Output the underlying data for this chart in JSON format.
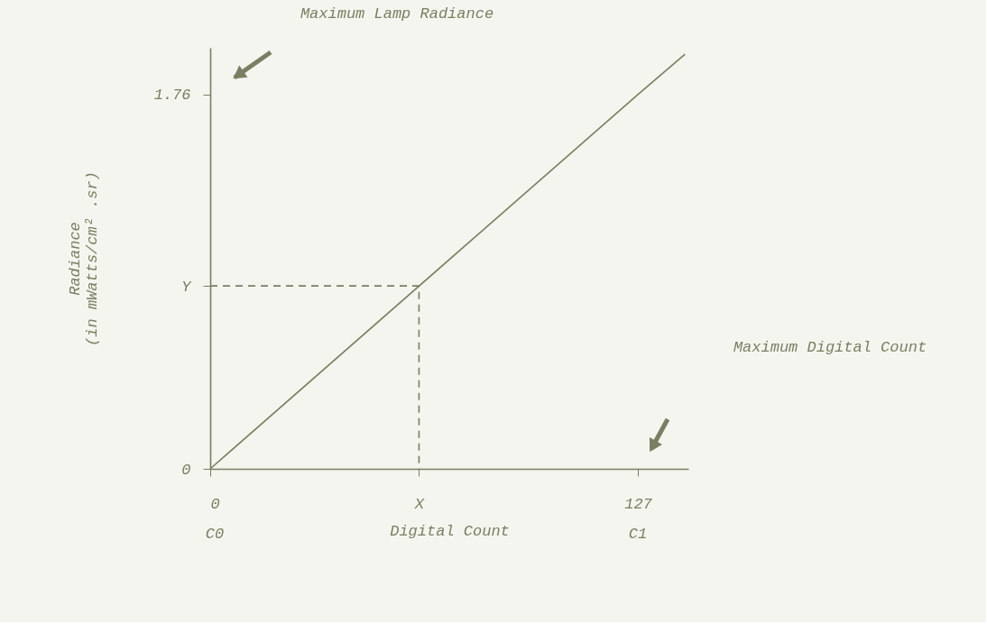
{
  "chart_data": {
    "type": "line",
    "xlabel": "Digital Count",
    "ylabel": "Radiance\n(in mWatts/cm² .sr)",
    "series": [
      {
        "color": "#7b7e63",
        "x": [
          0,
          127,
          141
        ],
        "values": [
          0,
          1.76,
          1.95
        ],
        "line_style": "solid"
      },
      {
        "color": "#7b7e63",
        "x": [
          0,
          62,
          62
        ],
        "values": [
          0.86,
          0.86,
          0
        ],
        "line_style": "dashed"
      }
    ],
    "xlim": [
      0,
      142
    ],
    "ylim": [
      0,
      1.98
    ],
    "xticks": [
      0,
      {
        "value": 62,
        "label": "X"
      },
      127
    ],
    "yticks": [
      0,
      {
        "value": 0.86,
        "label": "Y"
      },
      1.76
    ],
    "grid": false,
    "marker": "none",
    "annotations": [
      "Maximum Lamp Radiance",
      "Maximum Digital Count",
      "C0",
      "C1"
    ]
  }
}
